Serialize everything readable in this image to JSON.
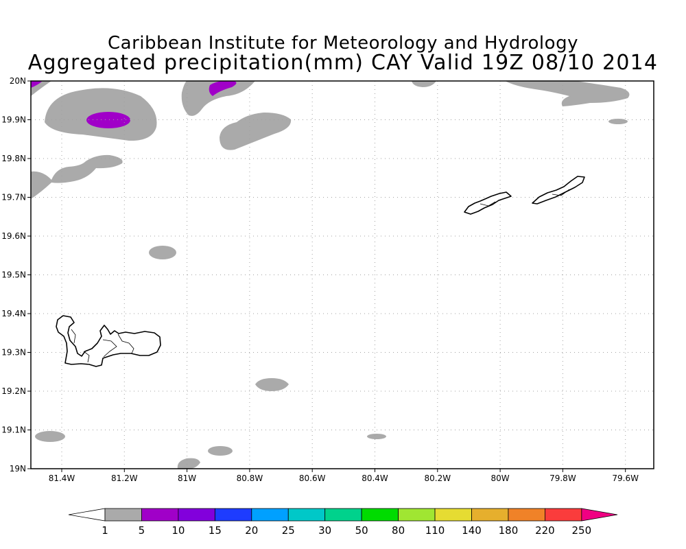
{
  "title": "Caribbean Institute for Meteorology and Hydrology",
  "subtitle": "Aggregated precipitation(mm) CAY Valid 19Z 08/10 2014",
  "map": {
    "lat_labels": [
      "20N",
      "19.9N",
      "19.8N",
      "19.7N",
      "19.6N",
      "19.5N",
      "19.4N",
      "19.3N",
      "19.2N",
      "19.1N",
      "19N"
    ],
    "lon_labels": [
      "81.4W",
      "81.2W",
      "81W",
      "80.8W",
      "80.6W",
      "80.4W",
      "80.2W",
      "80W",
      "79.8W",
      "79.6W"
    ],
    "grid": true,
    "features": [
      "Grand Cayman",
      "Little Cayman",
      "Cayman Brac"
    ]
  },
  "colorbar": {
    "labels": [
      "1",
      "5",
      "10",
      "15",
      "20",
      "25",
      "30",
      "50",
      "80",
      "110",
      "140",
      "180",
      "220",
      "250"
    ],
    "colors": [
      "#aaaaaa",
      "#a000c8",
      "#8200dc",
      "#1e3cff",
      "#00a0ff",
      "#00c8c8",
      "#00d28c",
      "#00dc00",
      "#a0e632",
      "#e6dc32",
      "#e6af2d",
      "#f08228",
      "#fa3c3c"
    ],
    "under_color": "#ffffff",
    "over_color": "#f00082"
  },
  "legend_colors": {
    "low": "#aaaaaa",
    "mid": "#a000c8"
  }
}
